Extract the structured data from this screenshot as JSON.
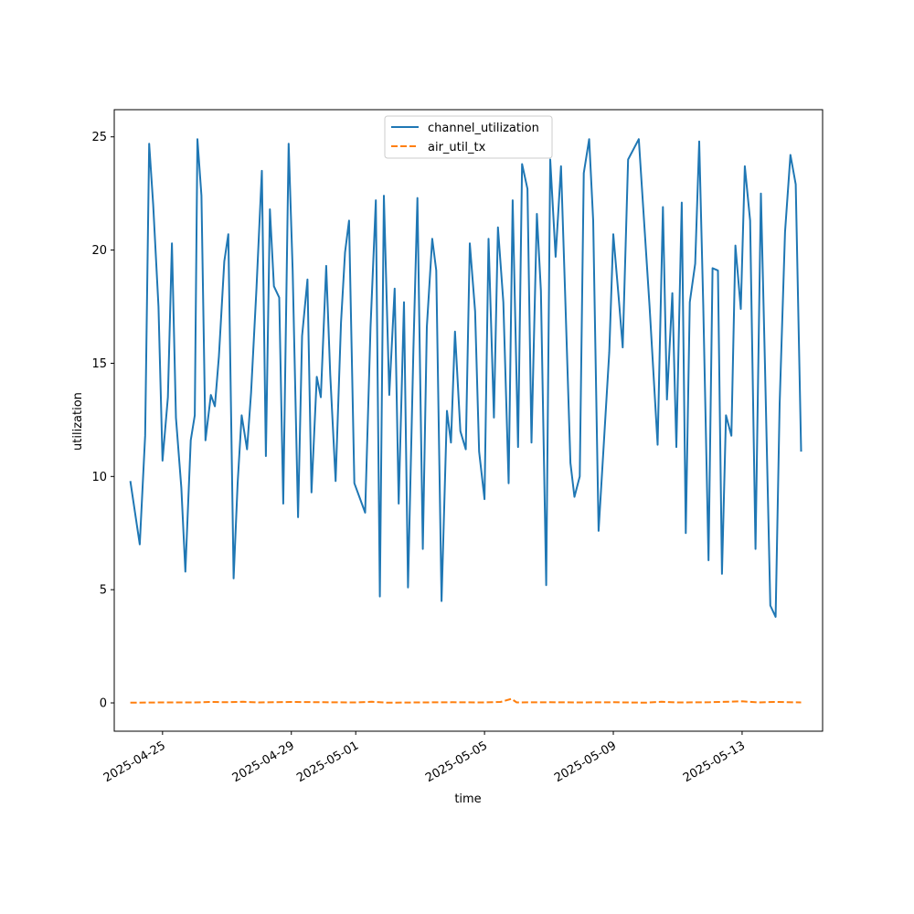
{
  "chart_data": {
    "type": "line",
    "xlabel": "time",
    "ylabel": "utilization",
    "x_range": [
      "2025-04-23T12:00",
      "2025-05-15T12:00"
    ],
    "ylim": [
      -1.25,
      26.2
    ],
    "y_ticks": [
      0,
      5,
      10,
      15,
      20,
      25
    ],
    "x_ticks": [
      "2025-04-25",
      "2025-04-29",
      "2025-05-01",
      "2025-05-05",
      "2025-05-09",
      "2025-05-13"
    ],
    "grid": false,
    "legend_position": "top-center",
    "series": [
      {
        "name": "channel_utilization",
        "color": "#1f77b4",
        "dash": "solid",
        "points": [
          [
            "2025-04-24T00:00",
            9.8
          ],
          [
            "2025-04-24T07:00",
            7.0
          ],
          [
            "2025-04-24T11:00",
            11.8
          ],
          [
            "2025-04-24T14:00",
            24.7
          ],
          [
            "2025-04-24T17:00",
            22.0
          ],
          [
            "2025-04-24T21:00",
            17.5
          ],
          [
            "2025-04-25T00:00",
            10.7
          ],
          [
            "2025-04-25T04:00",
            13.5
          ],
          [
            "2025-04-25T07:00",
            20.3
          ],
          [
            "2025-04-25T10:00",
            12.6
          ],
          [
            "2025-04-25T14:00",
            9.5
          ],
          [
            "2025-04-25T17:00",
            5.8
          ],
          [
            "2025-04-25T21:00",
            11.6
          ],
          [
            "2025-04-26T00:00",
            12.7
          ],
          [
            "2025-04-26T02:00",
            24.9
          ],
          [
            "2025-04-26T05:00",
            22.4
          ],
          [
            "2025-04-26T08:00",
            11.6
          ],
          [
            "2025-04-26T12:00",
            13.6
          ],
          [
            "2025-04-26T15:00",
            13.1
          ],
          [
            "2025-04-26T18:00",
            15.3
          ],
          [
            "2025-04-26T22:00",
            19.5
          ],
          [
            "2025-04-27T01:00",
            20.7
          ],
          [
            "2025-04-27T05:00",
            5.5
          ],
          [
            "2025-04-27T08:00",
            9.7
          ],
          [
            "2025-04-27T11:00",
            12.7
          ],
          [
            "2025-04-27T15:00",
            11.2
          ],
          [
            "2025-04-27T18:00",
            13.7
          ],
          [
            "2025-04-27T22:00",
            18.3
          ],
          [
            "2025-04-28T02:00",
            23.5
          ],
          [
            "2025-04-28T05:00",
            10.9
          ],
          [
            "2025-04-28T08:00",
            21.8
          ],
          [
            "2025-04-28T11:00",
            18.4
          ],
          [
            "2025-04-28T15:00",
            17.9
          ],
          [
            "2025-04-28T18:00",
            8.8
          ],
          [
            "2025-04-28T22:00",
            24.7
          ],
          [
            "2025-04-29T01:00",
            19.1
          ],
          [
            "2025-04-29T05:00",
            8.2
          ],
          [
            "2025-04-29T08:00",
            16.2
          ],
          [
            "2025-04-29T12:00",
            18.7
          ],
          [
            "2025-04-29T15:00",
            9.3
          ],
          [
            "2025-04-29T19:00",
            14.4
          ],
          [
            "2025-04-29T22:00",
            13.5
          ],
          [
            "2025-04-30T02:00",
            19.3
          ],
          [
            "2025-04-30T05:00",
            14.5
          ],
          [
            "2025-04-30T09:00",
            9.8
          ],
          [
            "2025-04-30T13:00",
            16.8
          ],
          [
            "2025-04-30T16:00",
            19.9
          ],
          [
            "2025-04-30T19:00",
            21.3
          ],
          [
            "2025-04-30T23:00",
            9.7
          ],
          [
            "2025-05-01T07:00",
            8.4
          ],
          [
            "2025-05-01T11:00",
            16.6
          ],
          [
            "2025-05-01T15:00",
            22.2
          ],
          [
            "2025-05-01T18:00",
            4.7
          ],
          [
            "2025-05-01T21:00",
            22.4
          ],
          [
            "2025-05-02T01:00",
            13.6
          ],
          [
            "2025-05-02T05:00",
            18.3
          ],
          [
            "2025-05-02T08:00",
            8.8
          ],
          [
            "2025-05-02T12:00",
            17.7
          ],
          [
            "2025-05-02T15:00",
            5.1
          ],
          [
            "2025-05-02T19:00",
            15.6
          ],
          [
            "2025-05-02T22:00",
            22.3
          ],
          [
            "2025-05-03T02:00",
            6.8
          ],
          [
            "2025-05-03T05:00",
            16.6
          ],
          [
            "2025-05-03T09:00",
            20.5
          ],
          [
            "2025-05-03T12:00",
            19.1
          ],
          [
            "2025-05-03T16:00",
            4.5
          ],
          [
            "2025-05-03T20:00",
            12.9
          ],
          [
            "2025-05-03T23:00",
            11.5
          ],
          [
            "2025-05-04T02:00",
            16.4
          ],
          [
            "2025-05-04T06:00",
            12.0
          ],
          [
            "2025-05-04T10:00",
            11.2
          ],
          [
            "2025-05-04T13:00",
            20.3
          ],
          [
            "2025-05-04T17:00",
            17.3
          ],
          [
            "2025-05-04T20:00",
            11.1
          ],
          [
            "2025-05-05T00:00",
            9.0
          ],
          [
            "2025-05-05T03:00",
            20.5
          ],
          [
            "2025-05-05T07:00",
            12.6
          ],
          [
            "2025-05-05T10:00",
            21.0
          ],
          [
            "2025-05-05T14:00",
            17.7
          ],
          [
            "2025-05-05T18:00",
            9.7
          ],
          [
            "2025-05-05T21:00",
            22.2
          ],
          [
            "2025-05-06T01:00",
            11.3
          ],
          [
            "2025-05-06T04:00",
            23.8
          ],
          [
            "2025-05-06T08:00",
            22.7
          ],
          [
            "2025-05-06T11:00",
            11.5
          ],
          [
            "2025-05-06T15:00",
            21.6
          ],
          [
            "2025-05-06T18:00",
            18.2
          ],
          [
            "2025-05-06T22:00",
            5.2
          ],
          [
            "2025-05-07T01:00",
            24.0
          ],
          [
            "2025-05-07T05:00",
            19.7
          ],
          [
            "2025-05-07T09:00",
            23.7
          ],
          [
            "2025-05-07T12:00",
            18.2
          ],
          [
            "2025-05-07T16:00",
            10.6
          ],
          [
            "2025-05-07T19:00",
            9.1
          ],
          [
            "2025-05-07T23:00",
            10.0
          ],
          [
            "2025-05-08T02:00",
            23.4
          ],
          [
            "2025-05-08T06:00",
            24.9
          ],
          [
            "2025-05-08T09:00",
            21.3
          ],
          [
            "2025-05-08T13:00",
            7.6
          ],
          [
            "2025-05-08T17:00",
            11.5
          ],
          [
            "2025-05-08T21:00",
            15.5
          ],
          [
            "2025-05-09T00:00",
            20.7
          ],
          [
            "2025-05-09T04:00",
            17.9
          ],
          [
            "2025-05-09T07:00",
            15.7
          ],
          [
            "2025-05-09T11:00",
            24.0
          ],
          [
            "2025-05-09T19:00",
            24.9
          ],
          [
            "2025-05-10T03:00",
            17.5
          ],
          [
            "2025-05-10T09:00",
            11.4
          ],
          [
            "2025-05-10T13:00",
            21.9
          ],
          [
            "2025-05-10T16:00",
            13.4
          ],
          [
            "2025-05-10T20:00",
            18.1
          ],
          [
            "2025-05-10T23:00",
            11.3
          ],
          [
            "2025-05-11T03:00",
            22.1
          ],
          [
            "2025-05-11T06:00",
            7.5
          ],
          [
            "2025-05-11T09:00",
            17.7
          ],
          [
            "2025-05-11T13:00",
            19.4
          ],
          [
            "2025-05-11T16:00",
            24.8
          ],
          [
            "2025-05-11T19:00",
            17.6
          ],
          [
            "2025-05-11T23:00",
            6.3
          ],
          [
            "2025-05-12T02:00",
            19.2
          ],
          [
            "2025-05-12T06:00",
            19.1
          ],
          [
            "2025-05-12T09:00",
            5.7
          ],
          [
            "2025-05-12T12:00",
            12.7
          ],
          [
            "2025-05-12T16:00",
            11.8
          ],
          [
            "2025-05-12T19:00",
            20.2
          ],
          [
            "2025-05-12T23:00",
            17.4
          ],
          [
            "2025-05-13T02:00",
            23.7
          ],
          [
            "2025-05-13T06:00",
            21.3
          ],
          [
            "2025-05-13T10:00",
            6.8
          ],
          [
            "2025-05-13T14:00",
            22.5
          ],
          [
            "2025-05-13T17:00",
            15.0
          ],
          [
            "2025-05-13T21:00",
            4.3
          ],
          [
            "2025-05-14T01:00",
            3.8
          ],
          [
            "2025-05-14T04:00",
            13.2
          ],
          [
            "2025-05-14T08:00",
            20.8
          ],
          [
            "2025-05-14T12:00",
            24.2
          ],
          [
            "2025-05-14T16:00",
            22.9
          ],
          [
            "2025-05-14T20:00",
            11.1
          ]
        ]
      },
      {
        "name": "air_util_tx",
        "color": "#ff7f0e",
        "dash": "dashed",
        "points": [
          [
            "2025-04-24T00:00",
            0.01
          ],
          [
            "2025-04-25T00:00",
            0.02
          ],
          [
            "2025-04-26T00:00",
            0.02
          ],
          [
            "2025-04-26T12:00",
            0.04
          ],
          [
            "2025-04-27T00:00",
            0.03
          ],
          [
            "2025-04-27T12:00",
            0.05
          ],
          [
            "2025-04-28T00:00",
            0.02
          ],
          [
            "2025-04-29T00:00",
            0.04
          ],
          [
            "2025-04-30T00:00",
            0.03
          ],
          [
            "2025-05-01T00:00",
            0.02
          ],
          [
            "2025-05-01T12:00",
            0.05
          ],
          [
            "2025-05-02T00:00",
            0.01
          ],
          [
            "2025-05-03T00:00",
            0.02
          ],
          [
            "2025-05-04T00:00",
            0.03
          ],
          [
            "2025-05-05T00:00",
            0.02
          ],
          [
            "2025-05-05T12:00",
            0.04
          ],
          [
            "2025-05-05T20:00",
            0.18
          ],
          [
            "2025-05-06T00:00",
            0.02
          ],
          [
            "2025-05-07T00:00",
            0.03
          ],
          [
            "2025-05-08T00:00",
            0.02
          ],
          [
            "2025-05-09T00:00",
            0.03
          ],
          [
            "2025-05-10T00:00",
            0.01
          ],
          [
            "2025-05-10T12:00",
            0.05
          ],
          [
            "2025-05-11T00:00",
            0.02
          ],
          [
            "2025-05-12T00:00",
            0.03
          ],
          [
            "2025-05-13T00:00",
            0.07
          ],
          [
            "2025-05-13T12:00",
            0.02
          ],
          [
            "2025-05-14T00:00",
            0.04
          ],
          [
            "2025-05-14T20:00",
            0.02
          ]
        ]
      }
    ]
  }
}
